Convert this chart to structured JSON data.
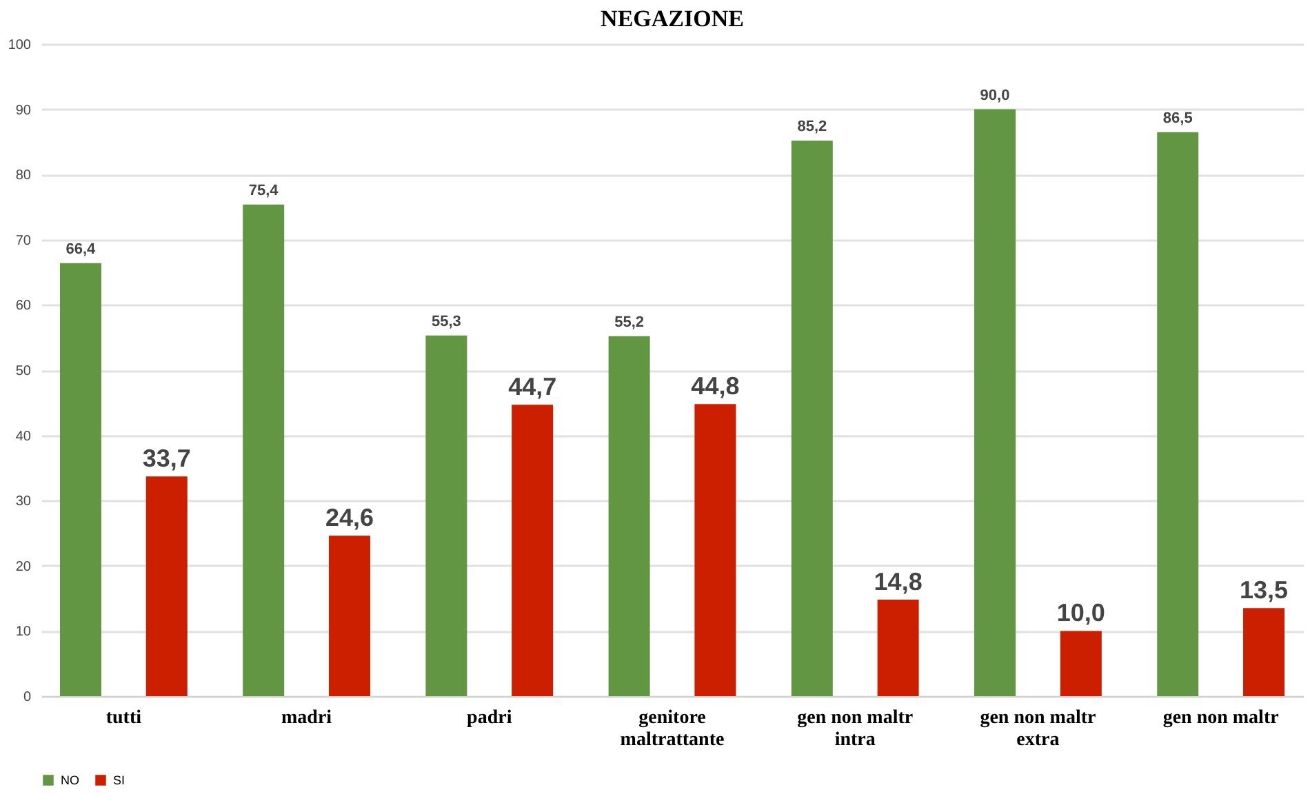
{
  "chart_data": {
    "type": "bar",
    "title": "NEGAZIONE",
    "categories": [
      "tutti",
      "madri",
      "padri",
      "genitore\nmaltrattante",
      "gen non maltr\nintra",
      "gen non maltr\nextra",
      "gen non maltr"
    ],
    "series": [
      {
        "name": "NO",
        "color": "#629642",
        "values": [
          66.4,
          75.4,
          55.3,
          55.2,
          85.2,
          90.0,
          86.5
        ],
        "value_labels": [
          "66,4",
          "75,4",
          "55,3",
          "55,2",
          "85,2",
          "90,0",
          "86,5"
        ]
      },
      {
        "name": "SI",
        "color": "#cc1f00",
        "values": [
          33.7,
          24.6,
          44.7,
          44.8,
          14.8,
          10.0,
          13.5
        ],
        "value_labels": [
          "33,7",
          "24,6",
          "44,7",
          "44,8",
          "14,8",
          "10,0",
          "13,5"
        ]
      }
    ],
    "ylim": [
      0,
      100
    ],
    "yticks": [
      0,
      10,
      20,
      30,
      40,
      50,
      60,
      70,
      80,
      90,
      100
    ],
    "grid": "y",
    "legend": "bottom"
  }
}
